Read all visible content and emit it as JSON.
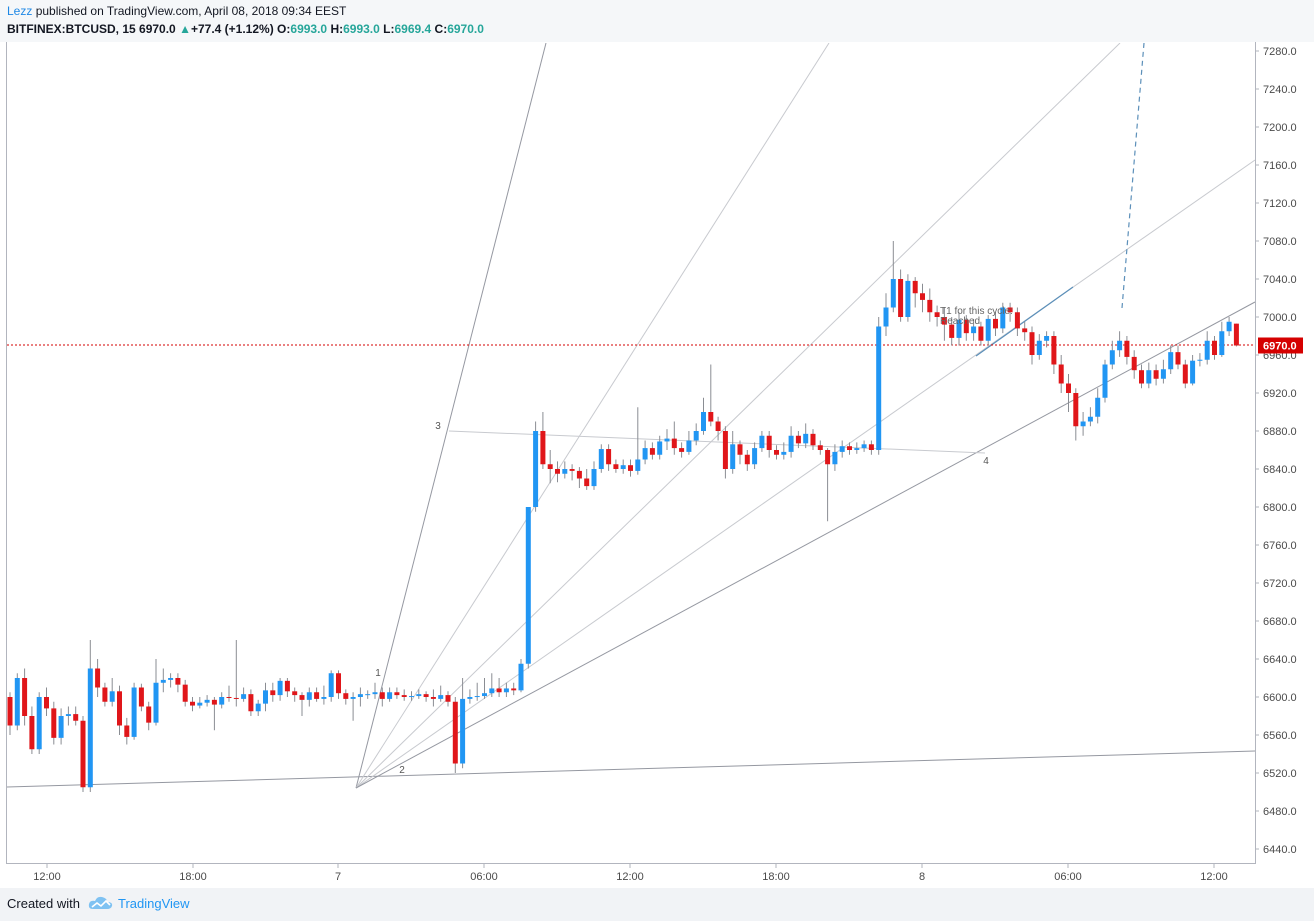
{
  "header": {
    "author": "Lezz",
    "published": " published on TradingView.com, April 08, 2018 09:34 EEST",
    "symbol": "BITFINEX:BTCUSD, 15",
    "last": "6970.0",
    "change": "+77.4 (+1.12%)",
    "o_label": "O:",
    "o_value": "6993.0",
    "h_label": "H:",
    "h_value": "6993.0",
    "l_label": "L:",
    "l_value": "6969.4",
    "c_label": "C:",
    "c_value": "6970.0"
  },
  "footer": {
    "created_with": "Created with",
    "brand": "TradingView"
  },
  "colors": {
    "up": "#2196f3",
    "down": "#e0161a",
    "price_line": "#d50000",
    "trend": "#9598a1",
    "fan": "#c8cacf",
    "projection": "#5b8fb9"
  },
  "chart_data": {
    "type": "candlestick",
    "symbol": "BITFINEX:BTCUSD",
    "interval": "15",
    "ylim": [
      6420,
      7295
    ],
    "y_ticks": [
      6440,
      6480,
      6520,
      6560,
      6600,
      6640,
      6680,
      6720,
      6760,
      6800,
      6840,
      6880,
      6920,
      6960,
      7000,
      7040,
      7080,
      7120,
      7160,
      7200,
      7240,
      7280
    ],
    "x_ticks": [
      "12:00",
      "18:00",
      "7",
      "06:00",
      "12:00",
      "18:00",
      "8",
      "06:00",
      "12:00"
    ],
    "last_price": "6970.0",
    "annotations": [
      {
        "text": "1",
        "at": 6629
      },
      {
        "text": "2",
        "at": 6525
      },
      {
        "text": "3",
        "at": 6887
      },
      {
        "text": "4",
        "at": 6850
      },
      {
        "text": "T1 for this cycle:",
        "at": 7007
      },
      {
        "text": "Reached",
        "at": 6996
      }
    ],
    "candles": [
      [
        6600,
        6570,
        6605,
        6560
      ],
      [
        6570,
        6620,
        6625,
        6565
      ],
      [
        6620,
        6580,
        6630,
        6570
      ],
      [
        6580,
        6545,
        6590,
        6540
      ],
      [
        6545,
        6600,
        6605,
        6540
      ],
      [
        6600,
        6588,
        6610,
        6580
      ],
      [
        6588,
        6557,
        6595,
        6550
      ],
      [
        6557,
        6580,
        6588,
        6550
      ],
      [
        6580,
        6582,
        6590,
        6570
      ],
      [
        6582,
        6575,
        6590,
        6570
      ],
      [
        6575,
        6505,
        6580,
        6500
      ],
      [
        6505,
        6630,
        6660,
        6500
      ],
      [
        6630,
        6610,
        6640,
        6600
      ],
      [
        6610,
        6595,
        6615,
        6590
      ],
      [
        6595,
        6606,
        6620,
        6590
      ],
      [
        6606,
        6570,
        6612,
        6560
      ],
      [
        6570,
        6558,
        6578,
        6550
      ],
      [
        6558,
        6610,
        6615,
        6555
      ],
      [
        6610,
        6590,
        6614,
        6585
      ],
      [
        6590,
        6573,
        6595,
        6565
      ],
      [
        6573,
        6615,
        6640,
        6570
      ],
      [
        6615,
        6618,
        6630,
        6605
      ],
      [
        6618,
        6620,
        6625,
        6610
      ],
      [
        6620,
        6613,
        6625,
        6605
      ],
      [
        6613,
        6595,
        6618,
        6590
      ],
      [
        6595,
        6591,
        6600,
        6585
      ],
      [
        6591,
        6594,
        6600,
        6588
      ],
      [
        6594,
        6597,
        6602,
        6590
      ],
      [
        6597,
        6592,
        6600,
        6565
      ],
      [
        6592,
        6600,
        6605,
        6588
      ],
      [
        6600,
        6599,
        6612,
        6595
      ],
      [
        6599,
        6598,
        6660,
        6590
      ],
      [
        6598,
        6603,
        6610,
        6595
      ],
      [
        6603,
        6585,
        6608,
        6580
      ],
      [
        6585,
        6593,
        6597,
        6580
      ],
      [
        6593,
        6607,
        6615,
        6585
      ],
      [
        6607,
        6602,
        6615,
        6595
      ],
      [
        6602,
        6617,
        6620,
        6596
      ],
      [
        6617,
        6606,
        6620,
        6600
      ],
      [
        6606,
        6602,
        6610,
        6595
      ],
      [
        6602,
        6597,
        6605,
        6580
      ],
      [
        6597,
        6605,
        6610,
        6590
      ],
      [
        6605,
        6598,
        6610,
        6595
      ],
      [
        6598,
        6600,
        6612,
        6592
      ],
      [
        6600,
        6625,
        6628,
        6595
      ],
      [
        6625,
        6604,
        6628,
        6598
      ],
      [
        6604,
        6598,
        6608,
        6592
      ],
      [
        6598,
        6600,
        6605,
        6575
      ],
      [
        6600,
        6603,
        6610,
        6590
      ],
      [
        6603,
        6603,
        6607,
        6598
      ],
      [
        6603,
        6605,
        6615,
        6598
      ],
      [
        6605,
        6598,
        6610,
        6590
      ],
      [
        6598,
        6605,
        6610,
        6595
      ],
      [
        6605,
        6602,
        6610,
        6598
      ],
      [
        6602,
        6600,
        6608,
        6596
      ],
      [
        6600,
        6601,
        6606,
        6596
      ],
      [
        6601,
        6603,
        6608,
        6598
      ],
      [
        6603,
        6600,
        6606,
        6595
      ],
      [
        6600,
        6598,
        6608,
        6590
      ],
      [
        6598,
        6602,
        6612,
        6595
      ],
      [
        6602,
        6595,
        6606,
        6590
      ],
      [
        6595,
        6530,
        6600,
        6520
      ],
      [
        6530,
        6598,
        6620,
        6525
      ],
      [
        6598,
        6600,
        6608,
        6593
      ],
      [
        6600,
        6601,
        6615,
        6596
      ],
      [
        6601,
        6604,
        6620,
        6598
      ],
      [
        6604,
        6609,
        6625,
        6600
      ],
      [
        6609,
        6605,
        6620,
        6600
      ],
      [
        6605,
        6609,
        6615,
        6600
      ],
      [
        6609,
        6607,
        6615,
        6602
      ],
      [
        6607,
        6635,
        6640,
        6605
      ],
      [
        6635,
        6800,
        6800,
        6630
      ],
      [
        6800,
        6880,
        6890,
        6795
      ],
      [
        6880,
        6845,
        6900,
        6840
      ],
      [
        6845,
        6840,
        6860,
        6825
      ],
      [
        6840,
        6835,
        6848,
        6826
      ],
      [
        6835,
        6840,
        6848,
        6830
      ],
      [
        6840,
        6838,
        6845,
        6828
      ],
      [
        6838,
        6830,
        6842,
        6820
      ],
      [
        6830,
        6822,
        6840,
        6818
      ],
      [
        6822,
        6840,
        6848,
        6818
      ],
      [
        6840,
        6861,
        6866,
        6836
      ],
      [
        6861,
        6845,
        6866,
        6838
      ],
      [
        6845,
        6840,
        6850,
        6836
      ],
      [
        6840,
        6844,
        6850,
        6835
      ],
      [
        6844,
        6838,
        6850,
        6832
      ],
      [
        6838,
        6850,
        6905,
        6834
      ],
      [
        6850,
        6862,
        6870,
        6845
      ],
      [
        6862,
        6855,
        6868,
        6850
      ],
      [
        6855,
        6869,
        6875,
        6850
      ],
      [
        6869,
        6872,
        6882,
        6860
      ],
      [
        6872,
        6862,
        6890,
        6855
      ],
      [
        6862,
        6858,
        6868,
        6852
      ],
      [
        6858,
        6870,
        6880,
        6855
      ],
      [
        6870,
        6880,
        6888,
        6865
      ],
      [
        6880,
        6900,
        6915,
        6876
      ],
      [
        6900,
        6890,
        6950,
        6885
      ],
      [
        6890,
        6880,
        6895,
        6870
      ],
      [
        6880,
        6840,
        6885,
        6830
      ],
      [
        6840,
        6866,
        6880,
        6835
      ],
      [
        6866,
        6855,
        6870,
        6845
      ],
      [
        6855,
        6845,
        6860,
        6838
      ],
      [
        6845,
        6862,
        6868,
        6840
      ],
      [
        6862,
        6875,
        6880,
        6858
      ],
      [
        6875,
        6860,
        6880,
        6852
      ],
      [
        6860,
        6855,
        6865,
        6850
      ],
      [
        6855,
        6858,
        6868,
        6850
      ],
      [
        6858,
        6875,
        6885,
        6852
      ],
      [
        6875,
        6867,
        6880,
        6862
      ],
      [
        6867,
        6877,
        6888,
        6862
      ],
      [
        6877,
        6865,
        6882,
        6860
      ],
      [
        6865,
        6860,
        6870,
        6855
      ],
      [
        6860,
        6845,
        6862,
        6785
      ],
      [
        6845,
        6858,
        6866,
        6838
      ],
      [
        6858,
        6864,
        6870,
        6852
      ],
      [
        6864,
        6860,
        6868,
        6855
      ],
      [
        6860,
        6862,
        6868,
        6856
      ],
      [
        6862,
        6866,
        6870,
        6858
      ],
      [
        6866,
        6860,
        6870,
        6855
      ],
      [
        6860,
        6990,
        7000,
        6855
      ],
      [
        6990,
        7010,
        7025,
        6980
      ],
      [
        7010,
        7040,
        7080,
        7005
      ],
      [
        7040,
        7000,
        7050,
        6995
      ],
      [
        7000,
        7038,
        7045,
        6995
      ],
      [
        7038,
        7025,
        7042,
        7010
      ],
      [
        7025,
        7018,
        7035,
        7005
      ],
      [
        7018,
        7005,
        7030,
        6995
      ],
      [
        7005,
        7000,
        7012,
        6990
      ],
      [
        7000,
        6992,
        7010,
        6975
      ],
      [
        6992,
        6978,
        7000,
        6970
      ],
      [
        6978,
        6997,
        7005,
        6970
      ],
      [
        6997,
        6983,
        7002,
        6975
      ],
      [
        6983,
        6990,
        6998,
        6975
      ],
      [
        6990,
        6975,
        6995,
        6970
      ],
      [
        6975,
        6998,
        7002,
        6970
      ],
      [
        6998,
        6988,
        7005,
        6980
      ],
      [
        6988,
        7010,
        7015,
        6983
      ],
      [
        7010,
        7005,
        7015,
        6995
      ],
      [
        7005,
        6988,
        7010,
        6980
      ],
      [
        6988,
        6984,
        6995,
        6975
      ],
      [
        6984,
        6960,
        6990,
        6950
      ],
      [
        6960,
        6975,
        6982,
        6955
      ],
      [
        6975,
        6980,
        6985,
        6968
      ],
      [
        6980,
        6950,
        6985,
        6940
      ],
      [
        6950,
        6930,
        6960,
        6920
      ],
      [
        6930,
        6920,
        6940,
        6900
      ],
      [
        6920,
        6885,
        6925,
        6870
      ],
      [
        6885,
        6890,
        6900,
        6875
      ],
      [
        6890,
        6895,
        6905,
        6885
      ],
      [
        6895,
        6915,
        6925,
        6888
      ],
      [
        6915,
        6950,
        6955,
        6910
      ],
      [
        6950,
        6965,
        6975,
        6945
      ],
      [
        6965,
        6975,
        6985,
        6958
      ],
      [
        6975,
        6958,
        6980,
        6950
      ],
      [
        6958,
        6944,
        6965,
        6935
      ],
      [
        6944,
        6930,
        6950,
        6925
      ],
      [
        6930,
        6944,
        6952,
        6925
      ],
      [
        6944,
        6935,
        6950,
        6928
      ],
      [
        6935,
        6945,
        6955,
        6930
      ],
      [
        6945,
        6963,
        6970,
        6940
      ],
      [
        6963,
        6950,
        6970,
        6945
      ],
      [
        6950,
        6930,
        6955,
        6925
      ],
      [
        6930,
        6954,
        6960,
        6928
      ],
      [
        6954,
        6955,
        6962,
        6948
      ],
      [
        6955,
        6975,
        6985,
        6950
      ],
      [
        6975,
        6960,
        6980,
        6955
      ],
      [
        6960,
        6985,
        6995,
        6958
      ],
      [
        6985,
        6995,
        7000,
        6980
      ],
      [
        6993,
        6970,
        6993,
        6969
      ]
    ]
  }
}
